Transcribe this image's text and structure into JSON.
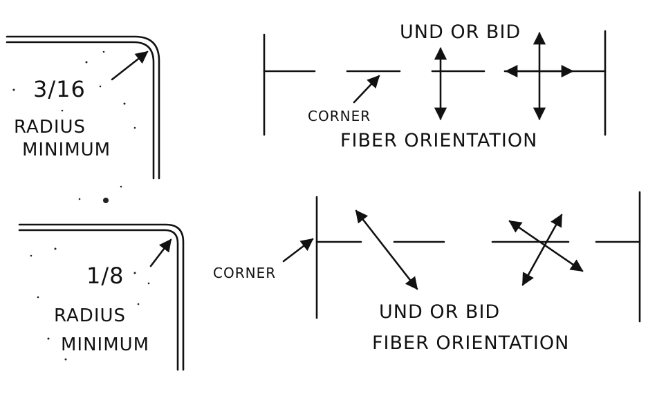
{
  "top": {
    "radius_value": "3/16",
    "radius_text": "RADIUS",
    "minimum_text": "MINIMUM",
    "corner_label": "CORNER",
    "fiber_type": "UND OR BID",
    "fiber_label": "FIBER ORIENTATION"
  },
  "bottom": {
    "radius_value": "1/8",
    "radius_text": "RADIUS",
    "minimum_text": "MINIMUM",
    "corner_label": "CORNER",
    "fiber_type": "UND OR BID",
    "fiber_label": "FIBER ORIENTATION"
  }
}
